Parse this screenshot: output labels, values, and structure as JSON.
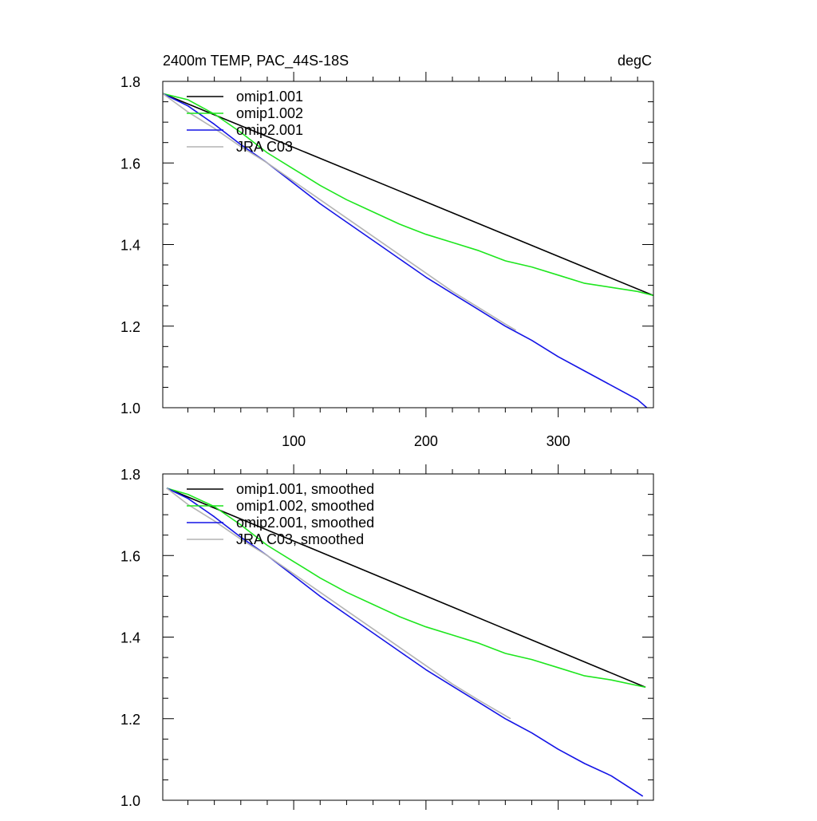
{
  "chart_data": [
    {
      "type": "line",
      "title": "2400m TEMP, PAC_44S-18S",
      "units": "degC",
      "xlim": [
        1,
        372
      ],
      "ylim": [
        1.0,
        1.8
      ],
      "yticks": [
        "1.0",
        "1.2",
        "1.4",
        "1.6",
        "1.8"
      ],
      "xticks": [
        "100",
        "200",
        "300"
      ],
      "legend_position": "top-left",
      "series": [
        {
          "name": "omip1.001",
          "color": "#000000",
          "x": [
            1,
            372
          ],
          "y": [
            1.77,
            1.275
          ]
        },
        {
          "name": "omip1.002",
          "color": "#1ee61e",
          "x": [
            1,
            20,
            40,
            60,
            80,
            100,
            120,
            140,
            160,
            180,
            200,
            220,
            240,
            260,
            280,
            300,
            320,
            340,
            360,
            372
          ],
          "y": [
            1.77,
            1.755,
            1.72,
            1.675,
            1.625,
            1.585,
            1.545,
            1.51,
            1.48,
            1.45,
            1.425,
            1.405,
            1.385,
            1.36,
            1.345,
            1.325,
            1.305,
            1.295,
            1.285,
            1.275
          ]
        },
        {
          "name": "omip2.001",
          "color": "#1414e6",
          "x": [
            1,
            20,
            40,
            60,
            80,
            100,
            120,
            140,
            160,
            180,
            200,
            220,
            240,
            260,
            280,
            300,
            320,
            340,
            360,
            367
          ],
          "y": [
            1.77,
            1.74,
            1.695,
            1.645,
            1.6,
            1.55,
            1.5,
            1.455,
            1.41,
            1.365,
            1.32,
            1.28,
            1.24,
            1.2,
            1.165,
            1.125,
            1.09,
            1.055,
            1.02,
            1.0
          ]
        },
        {
          "name": "JRA C03",
          "color": "#b4b4b4",
          "x": [
            1,
            20,
            40,
            60,
            80,
            100,
            120,
            140,
            160,
            180,
            200,
            220,
            240,
            260,
            268
          ],
          "y": [
            1.77,
            1.725,
            1.685,
            1.64,
            1.6,
            1.555,
            1.51,
            1.465,
            1.42,
            1.375,
            1.33,
            1.285,
            1.245,
            1.205,
            1.19
          ]
        }
      ]
    },
    {
      "type": "line",
      "title": "",
      "xlim": [
        1,
        372
      ],
      "ylim": [
        1.0,
        1.8
      ],
      "yticks": [
        "1.0",
        "1.2",
        "1.4",
        "1.6",
        "1.8"
      ],
      "xticks": [],
      "legend_position": "top-left",
      "series": [
        {
          "name": "omip1.001, smoothed",
          "color": "#000000",
          "x": [
            4,
            366
          ],
          "y": [
            1.765,
            1.277
          ]
        },
        {
          "name": "omip1.002, smoothed",
          "color": "#1ee61e",
          "x": [
            4,
            20,
            40,
            60,
            80,
            100,
            120,
            140,
            160,
            180,
            200,
            220,
            240,
            260,
            280,
            300,
            320,
            340,
            366
          ],
          "y": [
            1.765,
            1.75,
            1.72,
            1.675,
            1.625,
            1.585,
            1.545,
            1.51,
            1.48,
            1.45,
            1.425,
            1.405,
            1.385,
            1.36,
            1.345,
            1.325,
            1.305,
            1.295,
            1.277
          ]
        },
        {
          "name": "omip2.001, smoothed",
          "color": "#1414e6",
          "x": [
            4,
            20,
            40,
            60,
            80,
            100,
            120,
            140,
            160,
            180,
            200,
            220,
            240,
            260,
            280,
            300,
            320,
            340,
            364
          ],
          "y": [
            1.765,
            1.74,
            1.695,
            1.645,
            1.6,
            1.55,
            1.5,
            1.455,
            1.41,
            1.365,
            1.32,
            1.28,
            1.24,
            1.2,
            1.165,
            1.125,
            1.09,
            1.06,
            1.01
          ]
        },
        {
          "name": "JRA C03, smoothed",
          "color": "#b4b4b4",
          "x": [
            4,
            20,
            40,
            60,
            80,
            100,
            120,
            140,
            160,
            180,
            200,
            220,
            240,
            264
          ],
          "y": [
            1.765,
            1.725,
            1.685,
            1.64,
            1.6,
            1.555,
            1.51,
            1.465,
            1.42,
            1.375,
            1.33,
            1.285,
            1.245,
            1.2
          ]
        }
      ]
    }
  ]
}
